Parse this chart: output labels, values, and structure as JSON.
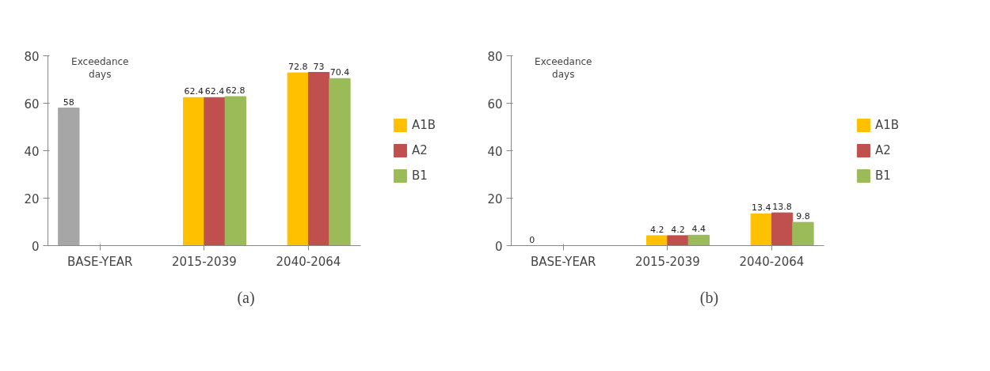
{
  "chart_data": [
    {
      "type": "bar",
      "ylabel": "Exceedance days",
      "categories": [
        "BASE-YEAR",
        "2015-2039",
        "2040-2064"
      ],
      "ylim": [
        0,
        80
      ],
      "yticks": [
        0,
        20,
        40,
        60,
        80
      ],
      "grid": false,
      "legend": "right",
      "data_labels": true,
      "annotations": [
        "(a)"
      ],
      "series": [
        {
          "color": "#a6a6a6",
          "values": [
            58,
            null,
            null
          ]
        },
        {
          "name": "A1B",
          "color": "#ffc000",
          "values": [
            null,
            62.4,
            72.8
          ]
        },
        {
          "name": "A2",
          "color": "#c0504d",
          "values": [
            null,
            62.4,
            73
          ]
        },
        {
          "name": "B1",
          "color": "#9bbb59",
          "values": [
            null,
            62.8,
            70.4
          ]
        }
      ]
    },
    {
      "type": "bar",
      "ylabel": "Exceedance days",
      "categories": [
        "BASE-YEAR",
        "2015-2039",
        "2040-2064"
      ],
      "ylim": [
        0,
        80
      ],
      "yticks": [
        0,
        20,
        40,
        60,
        80
      ],
      "grid": false,
      "legend": "right",
      "data_labels": true,
      "annotations": [
        "(b)"
      ],
      "series": [
        {
          "color": "#a6a6a6",
          "values": [
            0,
            null,
            null
          ]
        },
        {
          "name": "A1B",
          "color": "#ffc000",
          "values": [
            null,
            4.2,
            13.4
          ]
        },
        {
          "name": "A2",
          "color": "#c0504d",
          "values": [
            null,
            4.2,
            13.8
          ]
        },
        {
          "name": "B1",
          "color": "#9bbb59",
          "values": [
            null,
            4.4,
            9.8
          ]
        }
      ]
    }
  ]
}
